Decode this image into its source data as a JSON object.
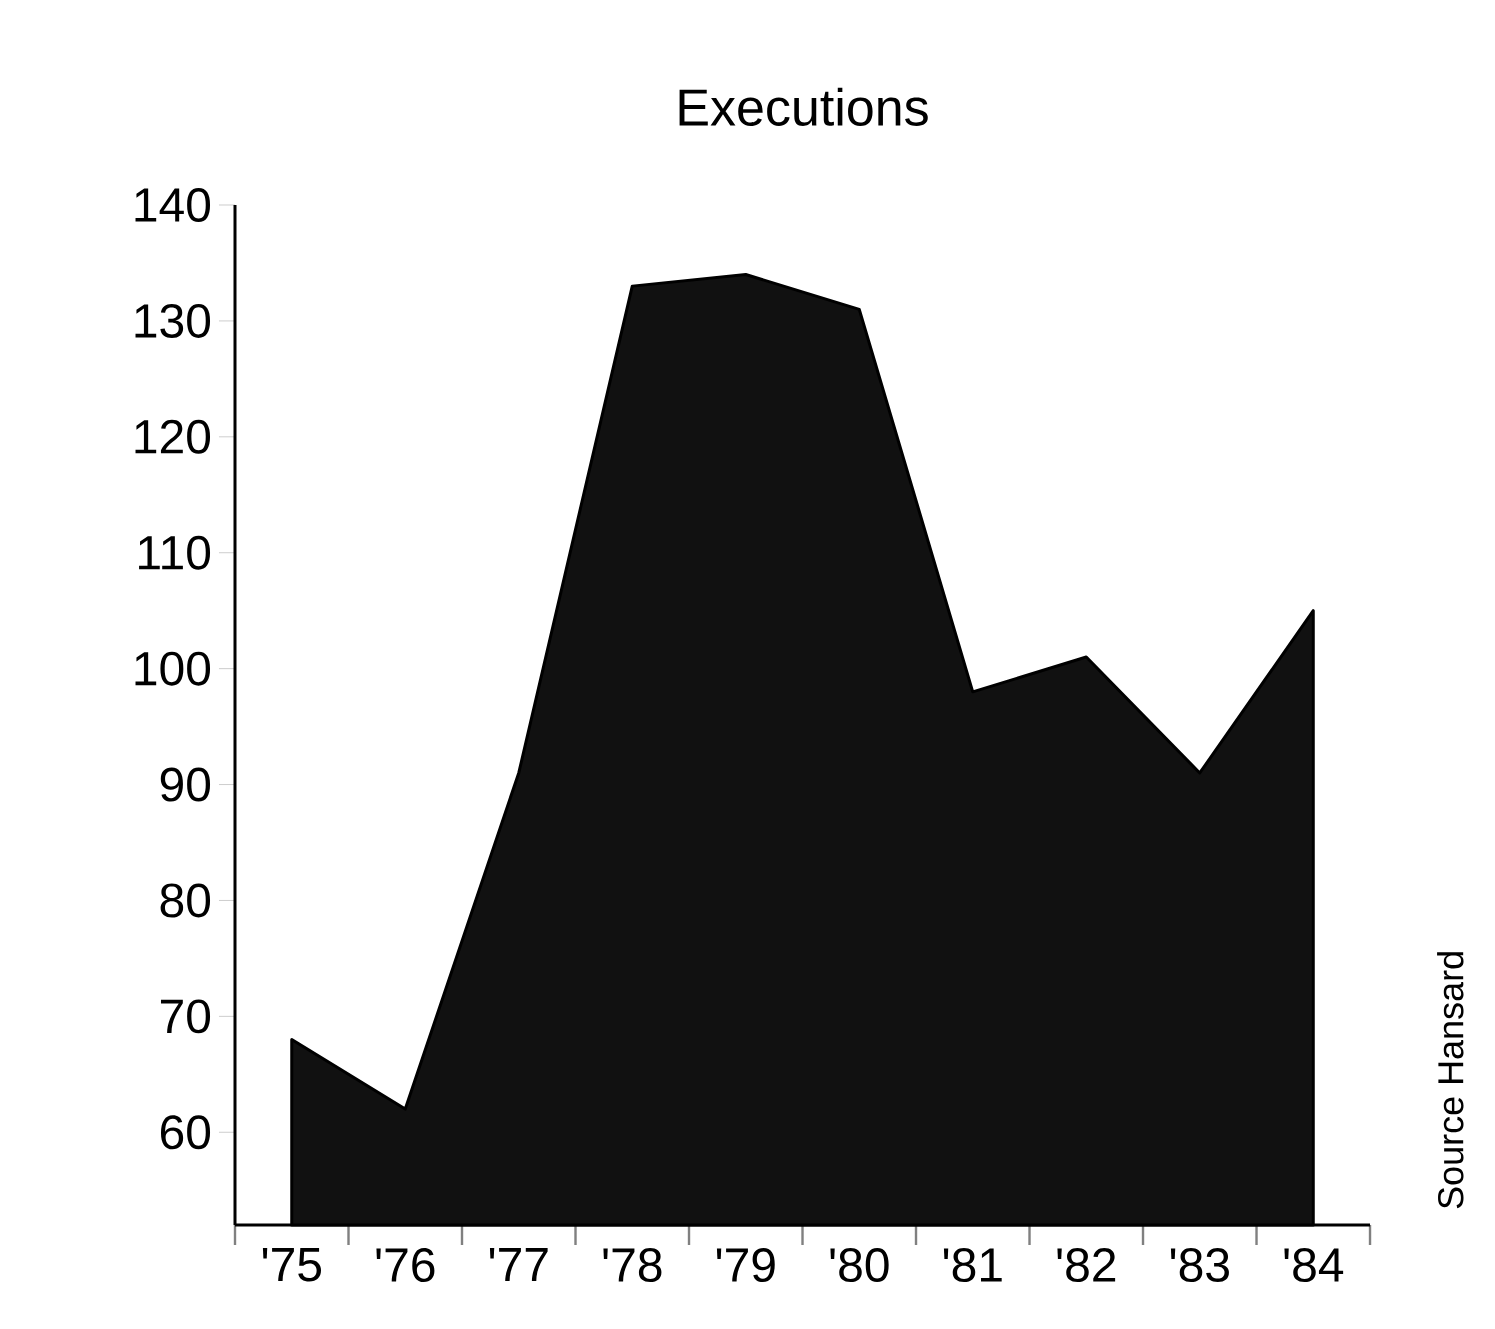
{
  "chart_data": {
    "type": "area",
    "title": "Executions",
    "categories": [
      "'75",
      "'76",
      "'77",
      "'78",
      "'79",
      "'80",
      "'81",
      "'82",
      "'83",
      "'84"
    ],
    "values": [
      68,
      62,
      91,
      133,
      134,
      131,
      98,
      101,
      91,
      105
    ],
    "color": "#111111",
    "ylim": [
      52,
      140
    ],
    "yticks": [
      60,
      70,
      80,
      90,
      100,
      110,
      120,
      130,
      140
    ],
    "annotations": [
      "Source Hansard"
    ]
  }
}
